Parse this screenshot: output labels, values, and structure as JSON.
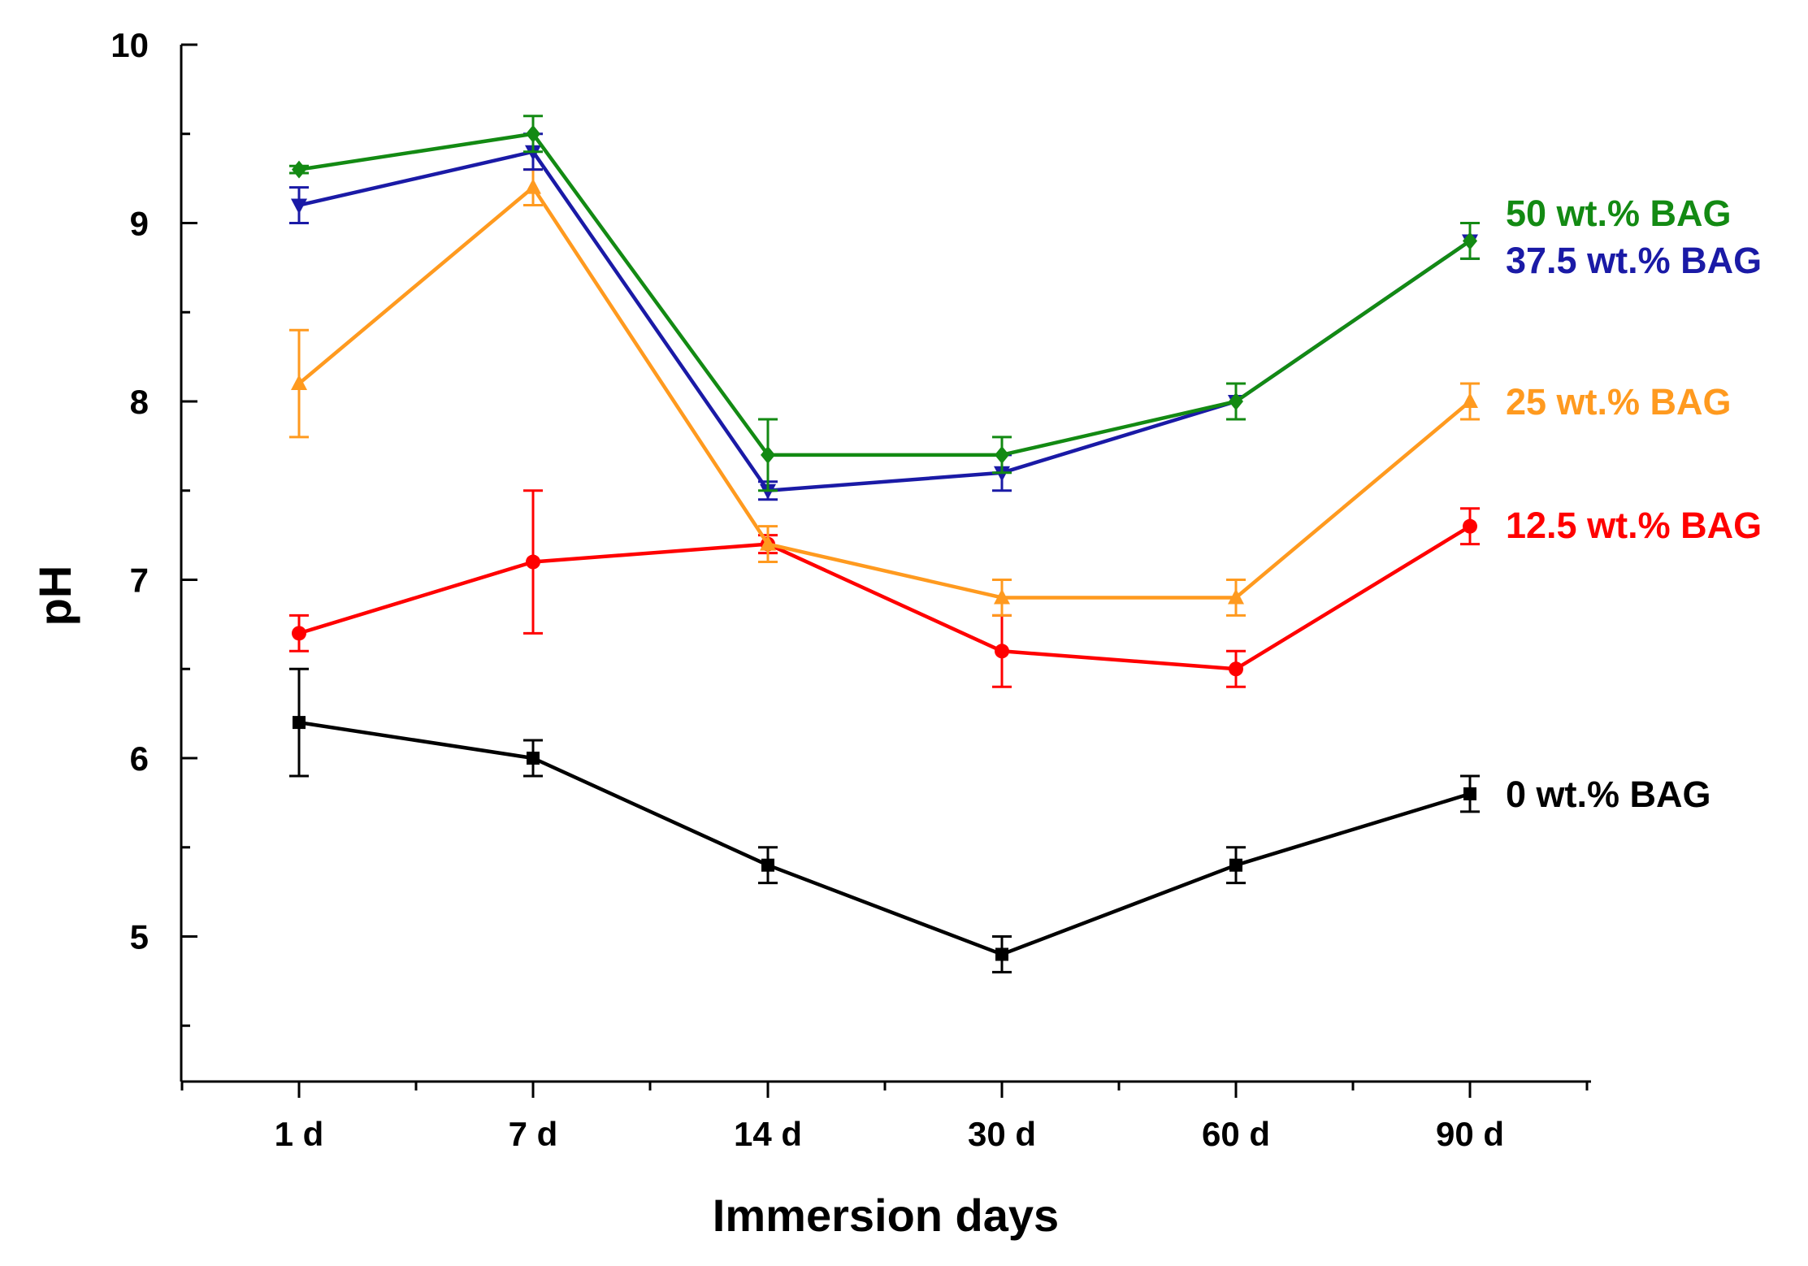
{
  "chart_data": {
    "type": "line",
    "title": "",
    "xlabel": "Immersion days",
    "ylabel": "pH",
    "categories": [
      "1 d",
      "7 d",
      "14 d",
      "30 d",
      "60 d",
      "90 d"
    ],
    "ylim": [
      4.2,
      10
    ],
    "yticks": [
      5,
      6,
      7,
      8,
      9,
      10
    ],
    "grid": false,
    "legend": "inline labels at right end of each series",
    "series": [
      {
        "name": "0 wt.% BAG",
        "color": "#000000",
        "marker": "square",
        "values": [
          6.2,
          6.0,
          5.4,
          4.9,
          5.4,
          5.8
        ],
        "errors": [
          0.3,
          0.1,
          0.1,
          0.1,
          0.1,
          0.1
        ]
      },
      {
        "name": "12.5 wt.% BAG",
        "color": "#ff0000",
        "marker": "circle",
        "values": [
          6.7,
          7.1,
          7.2,
          6.6,
          6.5,
          7.3
        ],
        "errors": [
          0.1,
          0.4,
          0.05,
          0.2,
          0.1,
          0.1
        ]
      },
      {
        "name": "25 wt.% BAG",
        "color": "#ff9a1f",
        "marker": "triangle-up",
        "values": [
          8.1,
          9.2,
          7.2,
          6.9,
          6.9,
          8.0
        ],
        "errors": [
          0.3,
          0.1,
          0.1,
          0.1,
          0.1,
          0.1
        ]
      },
      {
        "name": "37.5 wt.% BAG",
        "color": "#1a1aa6",
        "marker": "triangle-down",
        "values": [
          9.1,
          9.4,
          7.5,
          7.6,
          8.0,
          8.9
        ],
        "errors": [
          0.1,
          0.1,
          0.05,
          0.1,
          0.1,
          0.1
        ]
      },
      {
        "name": "50 wt.% BAG",
        "color": "#138a13",
        "marker": "diamond",
        "values": [
          9.3,
          9.5,
          7.7,
          7.7,
          8.0,
          8.9
        ],
        "errors": [
          0.02,
          0.1,
          0.2,
          0.1,
          0.1,
          0.1
        ]
      }
    ]
  }
}
